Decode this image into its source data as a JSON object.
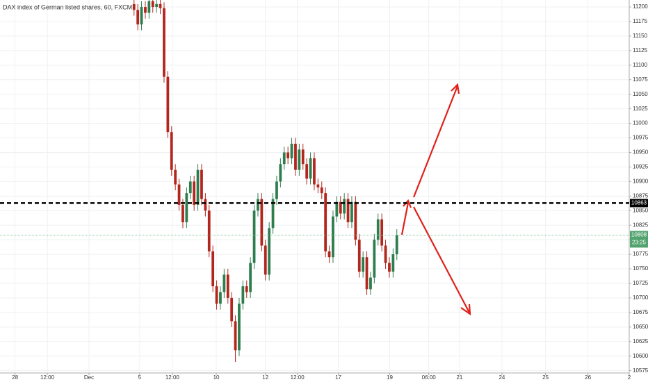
{
  "chart_data": {
    "type": "candlestick",
    "title": "DAX index of German listed shares, 60, FXCM",
    "up_color": "#2e7d4f",
    "down_color": "#b3261e",
    "grid": true,
    "xlim": [
      -35.7,
      131.9
    ],
    "xticks": [
      {
        "value": -31.7,
        "label": "28"
      },
      {
        "value": -23.1,
        "label": "12:00"
      },
      {
        "value": -12.0,
        "label": "Dec"
      },
      {
        "value": 1.5,
        "label": "5"
      },
      {
        "value": 10.2,
        "label": "12:00"
      },
      {
        "value": 21.9,
        "label": "10"
      },
      {
        "value": 35.0,
        "label": "12"
      },
      {
        "value": 43.5,
        "label": "12:00"
      },
      {
        "value": 54.4,
        "label": "17"
      },
      {
        "value": 68.1,
        "label": "19"
      },
      {
        "value": 78.5,
        "label": "06:00"
      },
      {
        "value": 86.7,
        "label": "21"
      },
      {
        "value": 98.0,
        "label": "24"
      },
      {
        "value": 109.6,
        "label": "25"
      },
      {
        "value": 120.9,
        "label": "26"
      },
      {
        "value": 131.9,
        "label": "2"
      }
    ],
    "ylim": [
      10571,
      11212
    ],
    "yticks": [
      10575,
      10600,
      10625,
      10650,
      10675,
      10700,
      10725,
      10750,
      10775,
      10800,
      10825,
      10850,
      10875,
      10900,
      10925,
      10950,
      10975,
      11000,
      11025,
      11050,
      11075,
      11100,
      11125,
      11150,
      11175,
      11200
    ],
    "open": [
      11205,
      11195,
      11170,
      11200,
      11190,
      11210,
      11200,
      11205,
      11198,
      11080,
      10985,
      10920,
      10895,
      10860,
      10830,
      10880,
      10900,
      10860,
      10920,
      10870,
      10850,
      10780,
      10720,
      10690,
      10710,
      10740,
      10700,
      10660,
      10610,
      10690,
      10720,
      10710,
      10760,
      10850,
      10870,
      10790,
      10740,
      10820,
      10870,
      10900,
      10930,
      10950,
      10940,
      10965,
      10920,
      10955,
      10930,
      10905,
      10940,
      10895,
      10890,
      10880,
      10780,
      10770,
      10840,
      10865,
      10845,
      10870,
      10830,
      10865,
      10800,
      10745,
      10770,
      10715,
      10735,
      10800,
      10835,
      10790,
      10760,
      10745,
      10775
    ],
    "high": [
      11215,
      11205,
      11210,
      11210,
      11220,
      11220,
      11215,
      11215,
      11208,
      11090,
      10995,
      10930,
      10905,
      10870,
      10890,
      10910,
      10910,
      10930,
      10930,
      10880,
      10860,
      10790,
      10730,
      10720,
      10750,
      10750,
      10710,
      10670,
      10700,
      10730,
      10730,
      10770,
      10860,
      10880,
      10880,
      10800,
      10830,
      10880,
      10910,
      10940,
      10960,
      10960,
      10975,
      10975,
      10965,
      10965,
      10940,
      10950,
      10950,
      10905,
      10900,
      10890,
      10790,
      10850,
      10875,
      10875,
      10880,
      10880,
      10875,
      10875,
      10810,
      10780,
      10780,
      10745,
      10810,
      10845,
      10845,
      10800,
      10770,
      10785,
      10818
    ],
    "low": [
      11185,
      11160,
      11160,
      11180,
      11180,
      11190,
      11190,
      11188,
      11070,
      10975,
      10910,
      10885,
      10850,
      10820,
      10820,
      10870,
      10850,
      10850,
      10860,
      10840,
      10770,
      10710,
      10680,
      10680,
      10700,
      10690,
      10650,
      10590,
      10600,
      10680,
      10700,
      10700,
      10750,
      10840,
      10780,
      10730,
      10730,
      10810,
      10860,
      10890,
      10920,
      10930,
      10930,
      10910,
      10910,
      10920,
      10895,
      10895,
      10885,
      10880,
      10870,
      10770,
      10760,
      10760,
      10830,
      10835,
      10835,
      10820,
      10820,
      10790,
      10735,
      10735,
      10705,
      10705,
      10725,
      10790,
      10780,
      10750,
      10735,
      10735,
      10765
    ],
    "close": [
      11195,
      11170,
      11200,
      11190,
      11210,
      11200,
      11205,
      11198,
      11080,
      10985,
      10920,
      10895,
      10860,
      10830,
      10880,
      10900,
      10860,
      10920,
      10870,
      10850,
      10780,
      10720,
      10690,
      10710,
      10740,
      10700,
      10660,
      10610,
      10690,
      10720,
      10710,
      10760,
      10850,
      10870,
      10790,
      10740,
      10820,
      10870,
      10900,
      10930,
      10950,
      10940,
      10965,
      10920,
      10955,
      10930,
      10905,
      10940,
      10895,
      10890,
      10880,
      10780,
      10770,
      10840,
      10865,
      10845,
      10870,
      10830,
      10865,
      10800,
      10745,
      10770,
      10715,
      10735,
      10800,
      10835,
      10790,
      10760,
      10745,
      10775,
      10808
    ],
    "hline": 10863,
    "last_price": 10808,
    "countdown": "23:25"
  }
}
